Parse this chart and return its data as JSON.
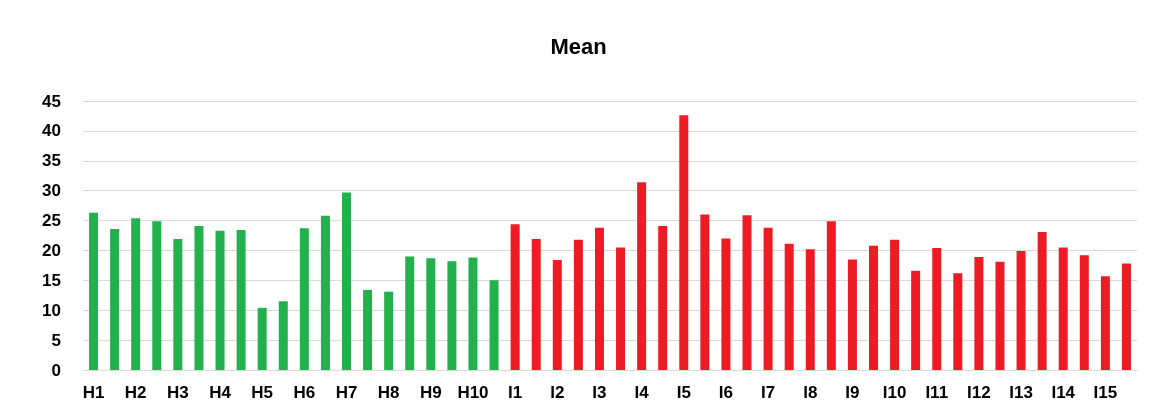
{
  "chart_data": {
    "type": "bar",
    "title": "Mean",
    "categories": [
      "H1",
      null,
      "H2",
      null,
      "H3",
      null,
      "H4",
      null,
      "H5",
      null,
      "H6",
      null,
      "H7",
      null,
      "H8",
      null,
      "H9",
      null,
      "H10",
      null,
      "I1",
      null,
      "I2",
      null,
      "I3",
      null,
      "I4",
      null,
      "I5",
      null,
      "I6",
      null,
      "I7",
      null,
      "I8",
      null,
      "I9",
      null,
      "I10",
      null,
      "I11",
      null,
      "I12",
      null,
      "I13",
      null,
      "I14",
      null,
      "I15",
      null
    ],
    "values": [
      26.3,
      23.6,
      25.4,
      24.9,
      21.9,
      24.1,
      23.3,
      23.4,
      10.4,
      11.5,
      23.7,
      25.8,
      29.7,
      13.4,
      13.1,
      19.0,
      18.7,
      18.2,
      18.8,
      15.0,
      24.4,
      21.9,
      18.4,
      21.8,
      23.8,
      20.5,
      31.4,
      24.1,
      42.6,
      26.0,
      22.0,
      25.9,
      23.8,
      21.1,
      20.2,
      24.9,
      18.5,
      20.8,
      21.8,
      16.6,
      20.4,
      16.2,
      18.9,
      18.1,
      19.9,
      23.1,
      20.5,
      19.2,
      15.7,
      17.8
    ],
    "colors": [
      "#22b14c",
      "#22b14c",
      "#22b14c",
      "#22b14c",
      "#22b14c",
      "#22b14c",
      "#22b14c",
      "#22b14c",
      "#22b14c",
      "#22b14c",
      "#22b14c",
      "#22b14c",
      "#22b14c",
      "#22b14c",
      "#22b14c",
      "#22b14c",
      "#22b14c",
      "#22b14c",
      "#22b14c",
      "#22b14c",
      "#ed1c24",
      "#ed1c24",
      "#ed1c24",
      "#ed1c24",
      "#ed1c24",
      "#ed1c24",
      "#ed1c24",
      "#ed1c24",
      "#ed1c24",
      "#ed1c24",
      "#ed1c24",
      "#ed1c24",
      "#ed1c24",
      "#ed1c24",
      "#ed1c24",
      "#ed1c24",
      "#ed1c24",
      "#ed1c24",
      "#ed1c24",
      "#ed1c24",
      "#ed1c24",
      "#ed1c24",
      "#ed1c24",
      "#ed1c24",
      "#ed1c24",
      "#ed1c24",
      "#ed1c24",
      "#ed1c24",
      "#ed1c24",
      "#ed1c24"
    ],
    "ylim": [
      0,
      45
    ],
    "yticks": [
      0,
      5,
      10,
      15,
      20,
      25,
      30,
      35,
      40,
      45
    ],
    "grid": "y"
  }
}
